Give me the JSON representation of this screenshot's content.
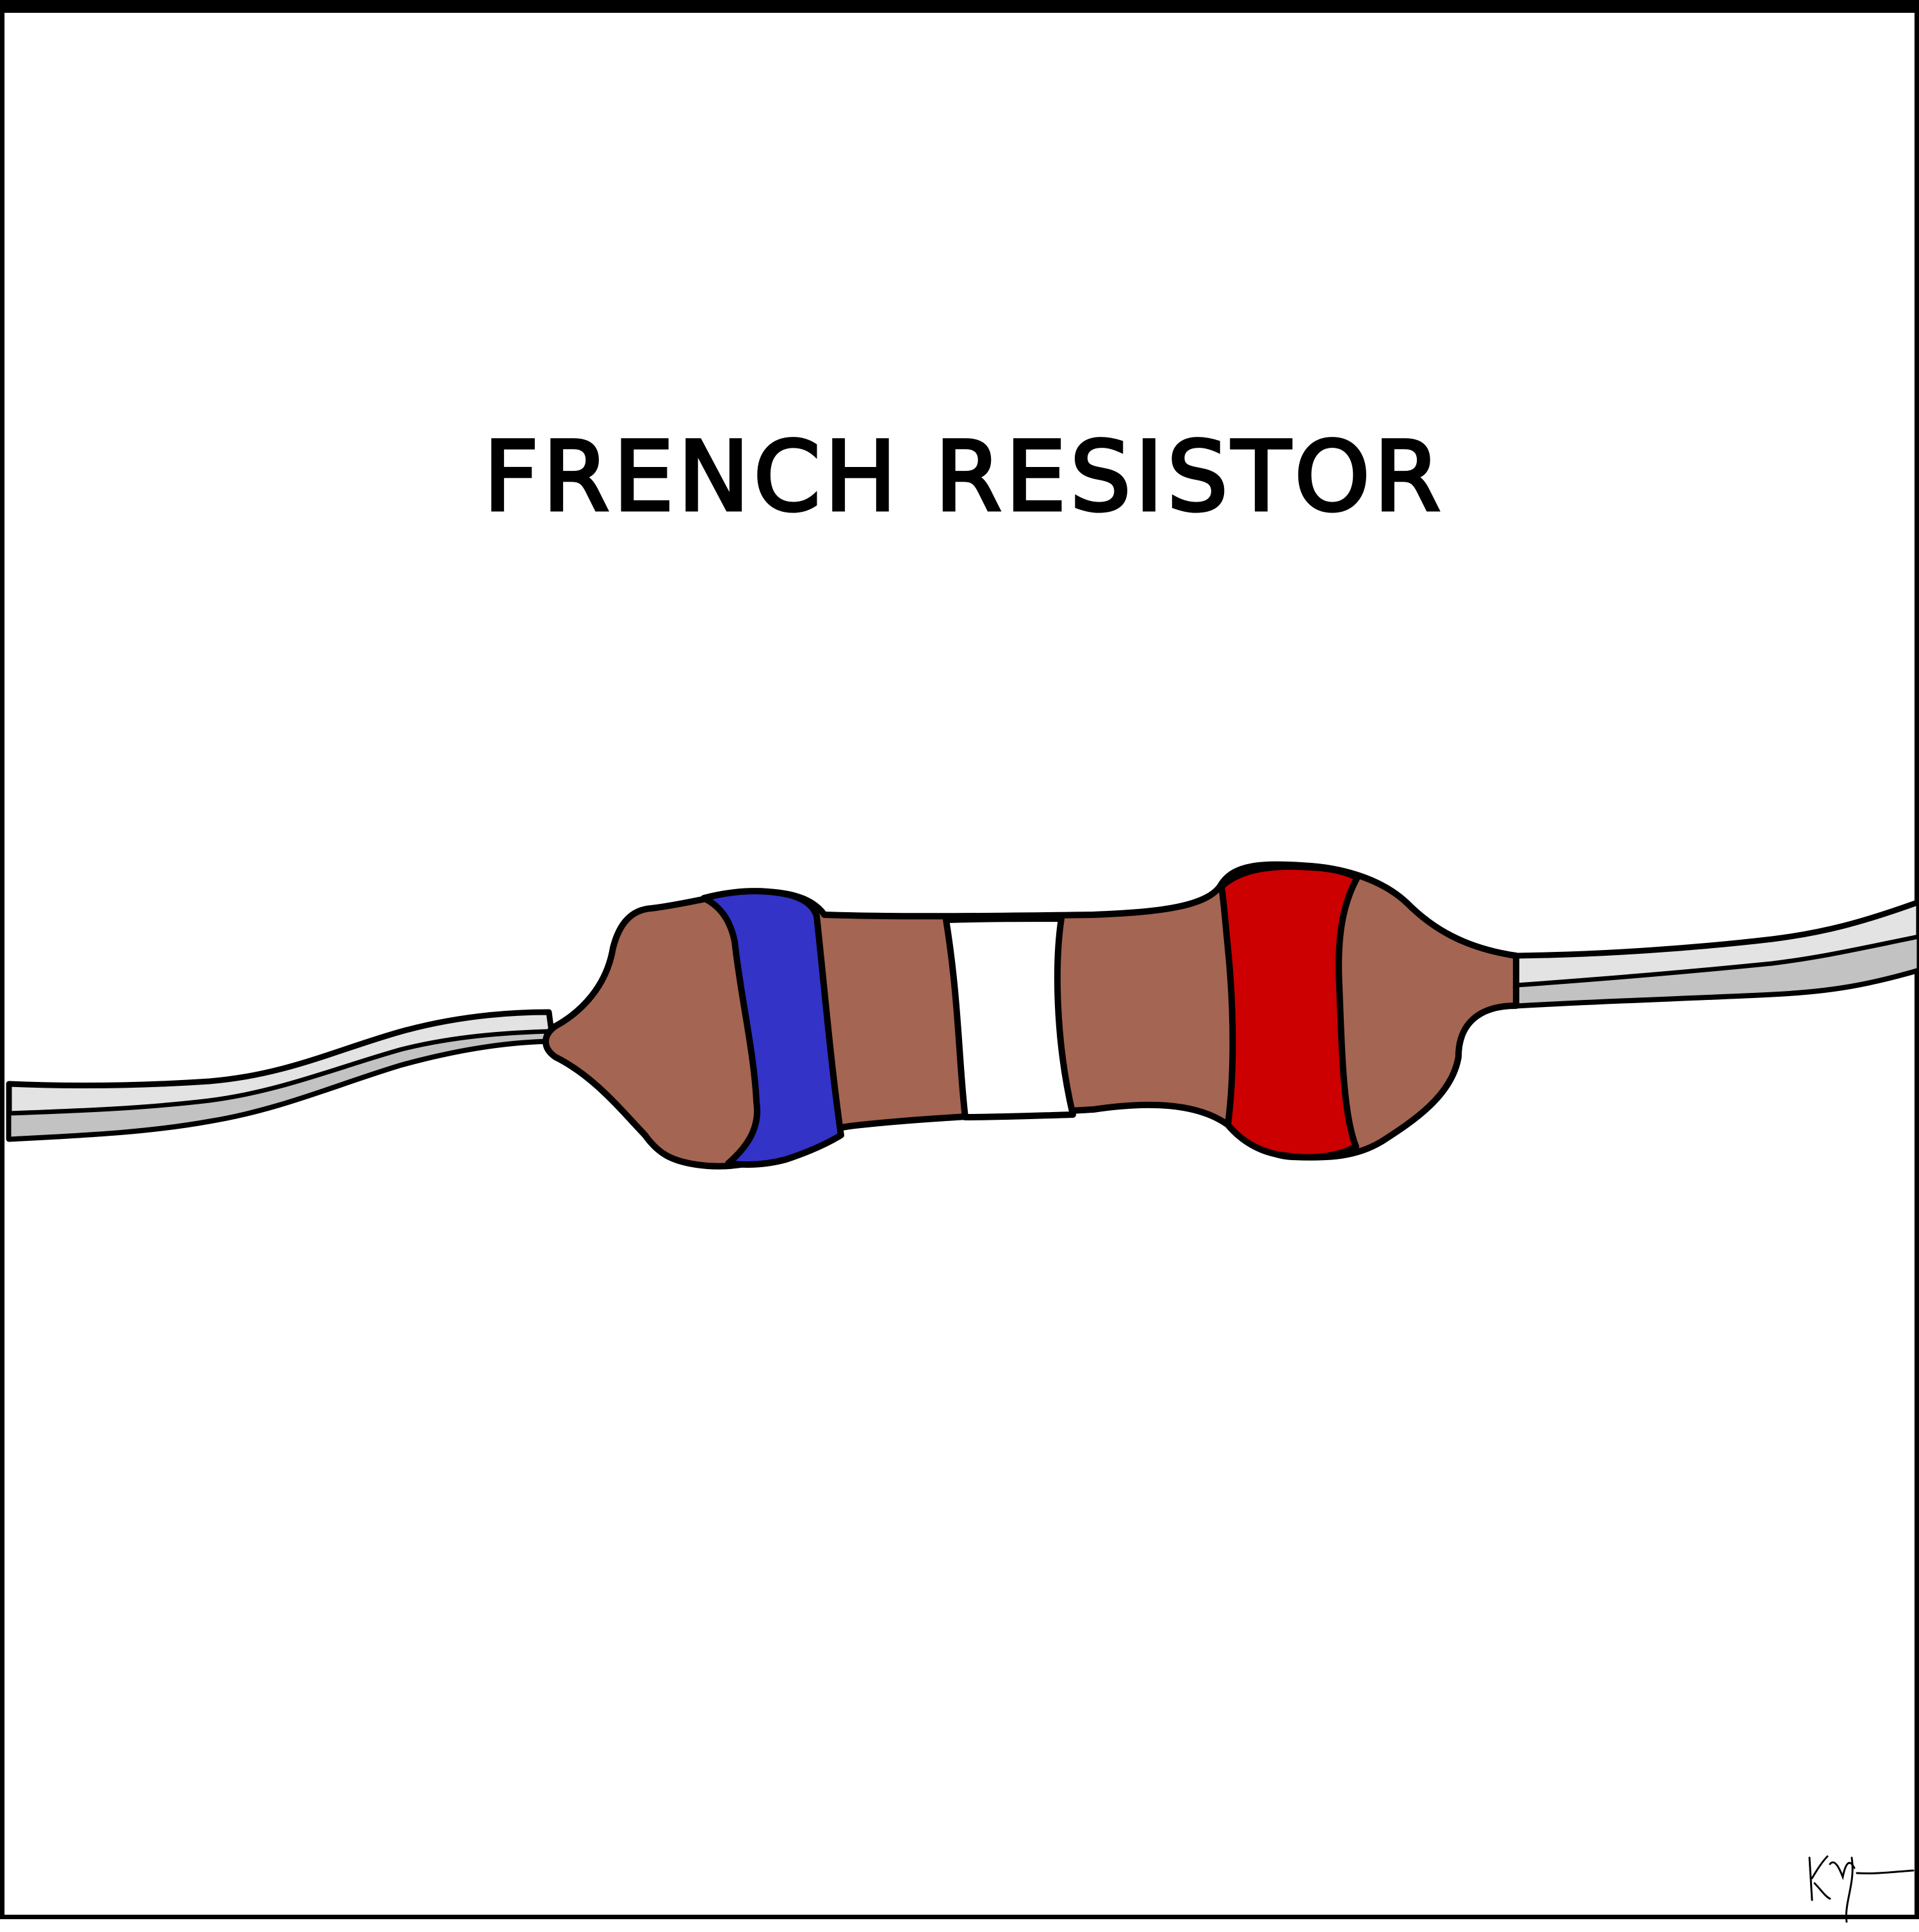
{
  "comic": {
    "title": "FRENCH RESISTOR"
  },
  "colors": {
    "resistor_body": "#a46552",
    "band_blue": "#3333c8",
    "band_white": "#ffffff",
    "band_red": "#cc0000",
    "lead_light": "#e3e3e3",
    "lead_dark": "#c2c2c2",
    "outline": "#000000"
  },
  "icons": {
    "resistor": "resistor-drawing",
    "signature": "artist-signature"
  }
}
